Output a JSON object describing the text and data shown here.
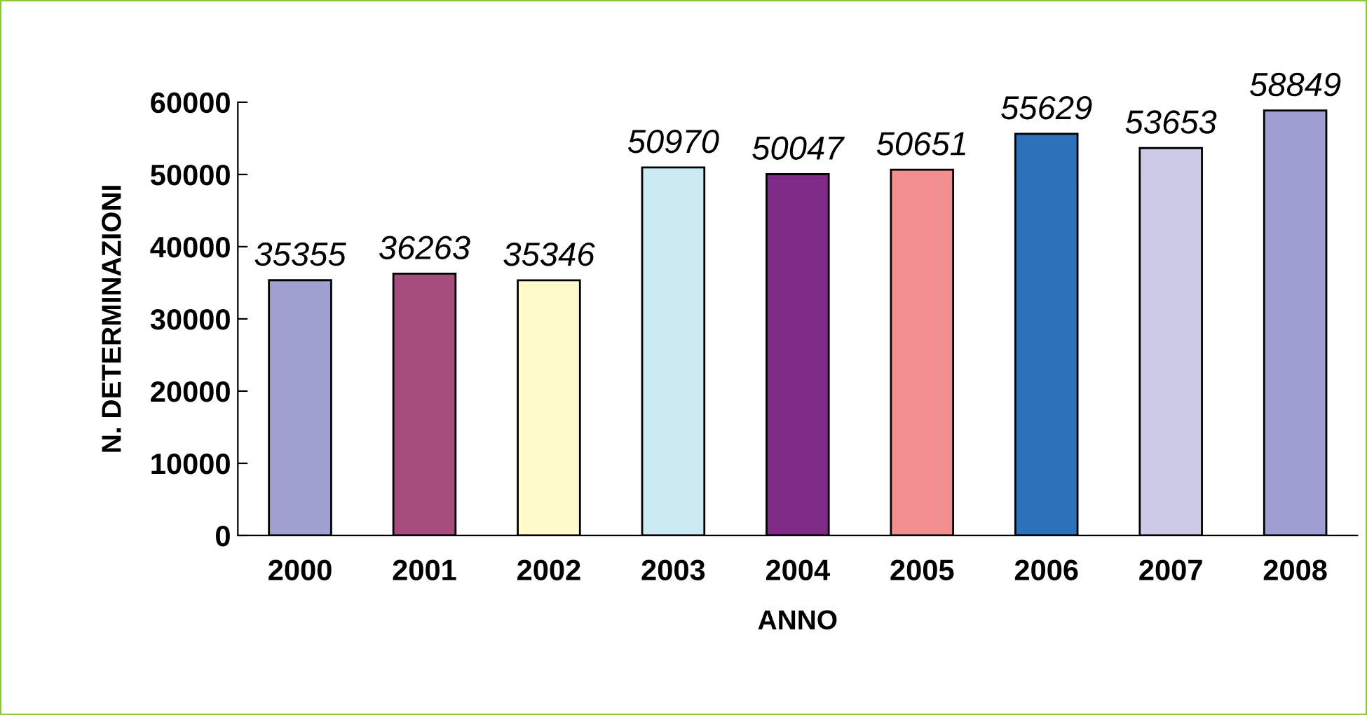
{
  "chart_data": {
    "type": "bar",
    "xlabel": "ANNO",
    "ylabel": "N. DETERMINAZIONI",
    "categories": [
      "2000",
      "2001",
      "2002",
      "2003",
      "2004",
      "2005",
      "2006",
      "2007",
      "2008"
    ],
    "values": [
      35355,
      36263,
      35346,
      50970,
      50047,
      50651,
      55629,
      53653,
      58849
    ],
    "colors": [
      "#9fa0d0",
      "#a64d7d",
      "#fffacc",
      "#cceaf2",
      "#7f2a87",
      "#f29090",
      "#2b72bb",
      "#ccccE6",
      "#9e9ed0"
    ],
    "ylim": [
      0,
      60000
    ],
    "yticks": [
      0,
      10000,
      20000,
      30000,
      40000,
      50000,
      60000
    ],
    "data_labels": true,
    "grid": false
  }
}
